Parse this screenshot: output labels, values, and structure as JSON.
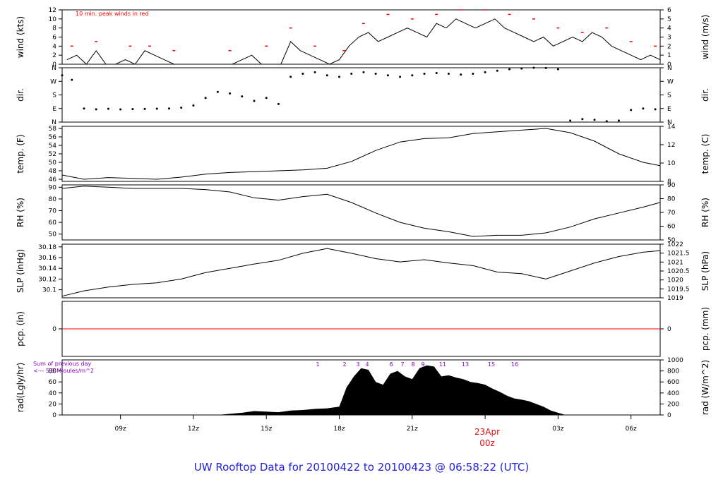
{
  "title": "UW Rooftop Data for 20100422  to  20100423 @ 06:58:22  (UTC)",
  "colors": {
    "text": "#000000",
    "peak": "#ff0000",
    "zero_line": "#ff0000",
    "title": "#2222dd",
    "day": "#dd1111",
    "note": "#8800cc",
    "fill": "#000000"
  },
  "x_ticks": [
    "09z",
    "12z",
    "15z",
    "18z",
    "21z",
    "00z",
    "03z",
    "06z"
  ],
  "day_label": {
    "date": "23Apr",
    "hour": "00z"
  },
  "chart_data": [
    {
      "type": "line",
      "panel": "wind",
      "ylabel": "wind (kts)",
      "ylabel_right": "wind (m/s)",
      "yticks": [
        0,
        2,
        4,
        6,
        8,
        10,
        12
      ],
      "yticks_right": [
        0,
        1,
        2,
        3,
        4,
        5,
        6
      ],
      "ylim": [
        0,
        12
      ],
      "annotation": "10 min. peak winds in red",
      "x": [
        6.8,
        7.2,
        7.6,
        8.0,
        8.4,
        8.8,
        9.2,
        9.6,
        10.0,
        10.4,
        10.8,
        11.2,
        11.6,
        12.0,
        12.4,
        12.8,
        13.2,
        13.6,
        14.0,
        14.4,
        14.8,
        15.2,
        15.6,
        16.0,
        16.4,
        16.8,
        17.2,
        17.6,
        18.0,
        18.4,
        18.8,
        19.2,
        19.6,
        20.0,
        20.4,
        20.8,
        21.2,
        21.6,
        22.0,
        22.4,
        22.8,
        23.2,
        23.6,
        24.0,
        24.4,
        24.8,
        25.2,
        25.6,
        26.0,
        26.4,
        26.8,
        27.2,
        27.6,
        28.0,
        28.4,
        28.8,
        29.2,
        29.6,
        30.0,
        30.4,
        30.8,
        31.2
      ],
      "y": [
        1,
        2,
        0,
        3,
        0,
        0,
        1,
        0,
        3,
        2,
        1,
        0,
        0,
        0,
        0,
        0,
        0,
        0,
        1,
        2,
        0,
        0,
        0,
        5,
        3,
        2,
        1,
        0,
        1,
        4,
        6,
        7,
        5,
        6,
        7,
        8,
        7,
        6,
        9,
        8,
        10,
        9,
        8,
        9,
        10,
        8,
        7,
        6,
        5,
        6,
        4,
        5,
        6,
        5,
        7,
        6,
        4,
        3,
        2,
        1,
        2,
        1
      ],
      "peak_x": [
        7.0,
        8.0,
        9.4,
        10.2,
        11.2,
        13.5,
        15.0,
        16.0,
        17.0,
        18.2,
        19.0,
        20.0,
        21.0,
        22.0,
        23.0,
        24.0,
        25.0,
        26.0,
        27.0,
        28.0,
        29.0,
        30.0,
        31.0
      ],
      "peak_y": [
        4,
        5,
        4,
        4,
        3,
        3,
        4,
        8,
        4,
        3,
        9,
        11,
        10,
        11,
        12,
        12,
        11,
        10,
        8,
        7,
        8,
        5,
        4
      ]
    },
    {
      "type": "scatter",
      "panel": "dir",
      "ylabel": "dir.",
      "ylabel_right": "dir.",
      "yticks": [
        "N",
        "E",
        "S",
        "W",
        "N"
      ],
      "ylim": [
        0,
        360
      ],
      "x": [
        6.6,
        7.0,
        7.5,
        8.0,
        8.5,
        9.0,
        9.5,
        10.0,
        10.5,
        11.0,
        11.5,
        12.0,
        12.5,
        13.0,
        13.5,
        14.0,
        14.5,
        15.0,
        15.5,
        16.0,
        16.5,
        17.0,
        17.5,
        18.0,
        18.5,
        19.0,
        19.5,
        20.0,
        20.5,
        21.0,
        21.5,
        22.0,
        22.5,
        23.0,
        23.5,
        24.0,
        24.5,
        25.0,
        25.5,
        26.0,
        26.5,
        27.0,
        27.5,
        28.0,
        28.5,
        29.0,
        29.5,
        30.0,
        30.5,
        31.0
      ],
      "y": [
        310,
        280,
        90,
        85,
        88,
        84,
        86,
        87,
        89,
        90,
        95,
        110,
        160,
        200,
        190,
        170,
        140,
        160,
        120,
        300,
        320,
        330,
        310,
        300,
        320,
        330,
        320,
        310,
        300,
        310,
        320,
        325,
        320,
        315,
        320,
        330,
        340,
        350,
        355,
        360,
        358,
        350,
        10,
        20,
        15,
        5,
        10,
        80,
        90,
        85
      ]
    },
    {
      "type": "line",
      "panel": "temp",
      "ylabel": "temp. (F)",
      "ylabel_right": "temp. (C)",
      "yticks": [
        46,
        48,
        50,
        52,
        54,
        56,
        58
      ],
      "yticks_right": [
        8,
        10,
        12,
        14
      ],
      "ylim": [
        45.5,
        58.5
      ],
      "x": [
        6.6,
        7.5,
        8.5,
        9.5,
        10.5,
        11.5,
        12.5,
        13.5,
        14.5,
        15.5,
        16.5,
        17.5,
        18.5,
        19.5,
        20.5,
        21.5,
        22.5,
        23.5,
        24.5,
        25.5,
        26.5,
        27.5,
        28.5,
        29.5,
        30.5,
        31.2
      ],
      "y": [
        47.0,
        46.0,
        46.4,
        46.2,
        46.0,
        46.5,
        47.2,
        47.6,
        47.8,
        48.0,
        48.2,
        48.6,
        50.2,
        52.8,
        54.8,
        55.6,
        55.8,
        56.8,
        57.2,
        57.6,
        58.0,
        57.0,
        55.0,
        52.0,
        50.0,
        49.2
      ]
    },
    {
      "type": "line",
      "panel": "rh",
      "ylabel": "RH (%)",
      "ylabel_right": "RH (%)",
      "yticks": [
        50,
        60,
        70,
        80,
        90
      ],
      "yticks_right": [
        50,
        60,
        70,
        80,
        90
      ],
      "ylim": [
        45,
        92
      ],
      "x": [
        6.6,
        7.5,
        8.5,
        9.5,
        10.5,
        11.5,
        12.5,
        13.5,
        14.5,
        15.5,
        16.5,
        17.5,
        18.5,
        19.5,
        20.5,
        21.5,
        22.5,
        23.5,
        24.5,
        25.5,
        26.5,
        27.5,
        28.5,
        29.5,
        30.5,
        31.2
      ],
      "y": [
        89,
        91,
        90,
        89,
        89,
        89,
        88,
        86,
        81,
        79,
        82,
        84,
        77,
        68,
        60,
        55,
        52,
        48,
        49,
        49,
        51,
        56,
        63,
        68,
        73,
        77
      ]
    },
    {
      "type": "line",
      "panel": "slp",
      "ylabel": "SLP (inHg)",
      "ylabel_right": "SLP (hPa)",
      "yticks": [
        30.1,
        30.12,
        30.14,
        30.16,
        30.18
      ],
      "yticks_right": [
        1019,
        1019.5,
        1020,
        1020.5,
        1021,
        1021.5,
        1022
      ],
      "ylim": [
        30.085,
        30.185
      ],
      "x": [
        6.6,
        7.5,
        8.5,
        9.5,
        10.5,
        11.5,
        12.5,
        13.5,
        14.5,
        15.5,
        16.5,
        17.5,
        18.5,
        19.5,
        20.5,
        21.5,
        22.5,
        23.5,
        24.5,
        25.5,
        26.5,
        27.5,
        28.5,
        29.5,
        30.5,
        31.2
      ],
      "y": [
        30.088,
        30.098,
        30.105,
        30.11,
        30.113,
        30.12,
        30.132,
        30.14,
        30.148,
        30.155,
        30.168,
        30.177,
        30.168,
        30.158,
        30.152,
        30.156,
        30.15,
        30.145,
        30.133,
        30.13,
        30.12,
        30.135,
        30.15,
        30.162,
        30.17,
        30.173
      ]
    },
    {
      "type": "line",
      "panel": "pcp",
      "ylabel": "pcp. (in)",
      "ylabel_right": "pcp. (mm)",
      "yticks": [
        0
      ],
      "yticks_right": [
        0
      ],
      "ylim": [
        -0.5,
        0.5
      ],
      "x": [
        6.6,
        31.2
      ],
      "y": [
        0,
        0
      ]
    },
    {
      "type": "area",
      "panel": "rad",
      "ylabel": "rad(Lgly/hr)",
      "ylabel_right": "rad (W/m^2)",
      "yticks": [
        0,
        20,
        40,
        60,
        80
      ],
      "yticks_right": [
        0,
        200,
        400,
        600,
        800,
        1000
      ],
      "ylim": [
        0,
        100
      ],
      "annotation_lines": [
        "Sum of previous day",
        "<--- 5.9 MJoules/m^2"
      ],
      "numbers": [
        "1",
        "2",
        "3",
        "4",
        "6",
        "7",
        "8",
        "9",
        "11",
        "13",
        "15",
        "16"
      ],
      "x": [
        13.0,
        13.5,
        14.0,
        14.5,
        15.0,
        15.5,
        16.0,
        16.5,
        17.0,
        17.5,
        18.0,
        18.3,
        18.6,
        18.9,
        19.2,
        19.5,
        19.8,
        20.1,
        20.4,
        20.7,
        21.0,
        21.3,
        21.6,
        21.9,
        22.2,
        22.5,
        22.8,
        23.1,
        23.4,
        23.7,
        24.0,
        24.3,
        24.6,
        24.9,
        25.2,
        25.5,
        25.8,
        26.1,
        26.4,
        26.7,
        27.0,
        27.3
      ],
      "y": [
        0,
        2,
        4,
        7,
        6,
        5,
        8,
        9,
        11,
        12,
        15,
        50,
        70,
        85,
        82,
        60,
        55,
        75,
        80,
        70,
        65,
        85,
        90,
        88,
        70,
        72,
        68,
        65,
        60,
        58,
        55,
        48,
        42,
        35,
        30,
        28,
        25,
        20,
        15,
        8,
        4,
        0
      ]
    }
  ]
}
